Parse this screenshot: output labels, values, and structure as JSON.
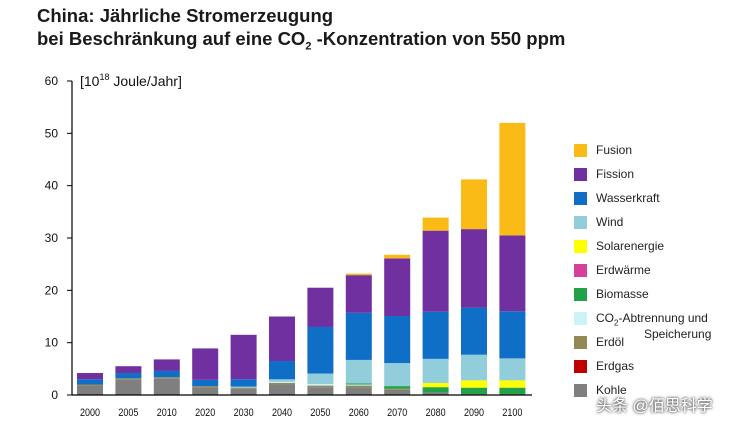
{
  "title_line1": "China: Jährliche Stromerzeugung",
  "title_line2_pre": "bei Beschränkung auf eine CO",
  "title_line2_sub": "2",
  "title_line2_post": " -Konzentration von 550 ppm",
  "watermark": "头条 @佰思科学",
  "chart_data": {
    "type": "bar",
    "stacked": true,
    "title": "China: Jährliche Stromerzeugung bei Beschränkung auf eine CO2 -Konzentration von 550 ppm",
    "ylabel": "[10^18 Joule/Jahr]",
    "ylabel_pre": "[10",
    "ylabel_sup": "18",
    "ylabel_post": " Joule/Jahr]",
    "xlabel": "",
    "ylim": [
      0,
      60
    ],
    "yticks": [
      0,
      10,
      20,
      30,
      40,
      50,
      60
    ],
    "categories": [
      "2000",
      "2005",
      "2010",
      "2020",
      "2030",
      "2040",
      "2050",
      "2060",
      "2070",
      "2080",
      "2090",
      "2100"
    ],
    "series": [
      {
        "name": "Kohle",
        "color": "#7f7f7f",
        "values": [
          1.8,
          3.0,
          3.2,
          1.5,
          1.2,
          2.0,
          1.5,
          1.5,
          1.0,
          0.5,
          0.2,
          0.2
        ]
      },
      {
        "name": "Erdgas",
        "color": "#c00000",
        "values": [
          0,
          0,
          0,
          0,
          0,
          0,
          0,
          0,
          0,
          0,
          0,
          0
        ]
      },
      {
        "name": "Erdöl",
        "color": "#938953",
        "values": [
          0.2,
          0.2,
          0.2,
          0.2,
          0.2,
          0.3,
          0.3,
          0.3,
          0.2,
          0,
          0,
          0
        ]
      },
      {
        "name": "CO2-Abtrennung und Speicherung",
        "color": "#ccf2f7",
        "values": [
          0,
          0,
          0,
          0,
          0,
          0.2,
          0.3,
          0.2,
          0,
          0,
          0,
          0
        ]
      },
      {
        "name": "Biomasse",
        "color": "#21a148",
        "values": [
          0,
          0,
          0,
          0,
          0,
          0,
          0,
          0.2,
          0.5,
          1.0,
          1.2,
          1.2
        ]
      },
      {
        "name": "Erdwärme",
        "color": "#d4409a",
        "values": [
          0,
          0,
          0,
          0,
          0,
          0,
          0,
          0,
          0,
          0,
          0,
          0
        ]
      },
      {
        "name": "Solarenergie",
        "color": "#ffff00",
        "values": [
          0,
          0,
          0,
          0,
          0,
          0,
          0,
          0,
          0,
          0.8,
          1.4,
          1.4
        ]
      },
      {
        "name": "Wind",
        "color": "#92cddc",
        "values": [
          0,
          0,
          0,
          0,
          0.2,
          0.5,
          2.0,
          4.5,
          4.4,
          4.6,
          4.9,
          4.2
        ]
      },
      {
        "name": "Wasserkraft",
        "color": "#0f6fc6",
        "values": [
          1.0,
          1.0,
          1.2,
          1.2,
          1.4,
          3.5,
          8.9,
          9.0,
          9.0,
          9.0,
          9.0,
          9.0
        ]
      },
      {
        "name": "Fission",
        "color": "#7030a0",
        "values": [
          1.2,
          1.3,
          2.2,
          6.0,
          8.5,
          8.5,
          7.5,
          7.2,
          11.0,
          15.5,
          15.0,
          14.5
        ]
      },
      {
        "name": "Fusion",
        "color": "#fbbb16",
        "values": [
          0,
          0,
          0,
          0,
          0,
          0,
          0,
          0.3,
          0.7,
          2.5,
          9.5,
          21.5
        ]
      }
    ],
    "legend": {
      "placement": "right",
      "order": [
        "Fusion",
        "Fission",
        "Wasserkraft",
        "Wind",
        "Solarenergie",
        "Erdwärme",
        "Biomasse",
        "CO2-Abtrennung und Speicherung",
        "Erdöl",
        "Erdgas",
        "Kohle"
      ],
      "labels": [
        {
          "pre": "Fusion",
          "sub": "",
          "post": "",
          "line2": ""
        },
        {
          "pre": "Fission",
          "sub": "",
          "post": "",
          "line2": ""
        },
        {
          "pre": "Wasserkraft",
          "sub": "",
          "post": "",
          "line2": ""
        },
        {
          "pre": "Wind",
          "sub": "",
          "post": "",
          "line2": ""
        },
        {
          "pre": "Solarenergie",
          "sub": "",
          "post": "",
          "line2": ""
        },
        {
          "pre": "Erdwärme",
          "sub": "",
          "post": "",
          "line2": ""
        },
        {
          "pre": "Biomasse",
          "sub": "",
          "post": "",
          "line2": ""
        },
        {
          "pre": "CO",
          "sub": "2",
          "post": "-Abtrennung und",
          "line2": "Speicherung"
        },
        {
          "pre": "Erdöl",
          "sub": "",
          "post": "",
          "line2": ""
        },
        {
          "pre": "Erdgas",
          "sub": "",
          "post": "",
          "line2": ""
        },
        {
          "pre": "Kohle",
          "sub": "",
          "post": "",
          "line2": ""
        }
      ]
    },
    "grid": false
  }
}
